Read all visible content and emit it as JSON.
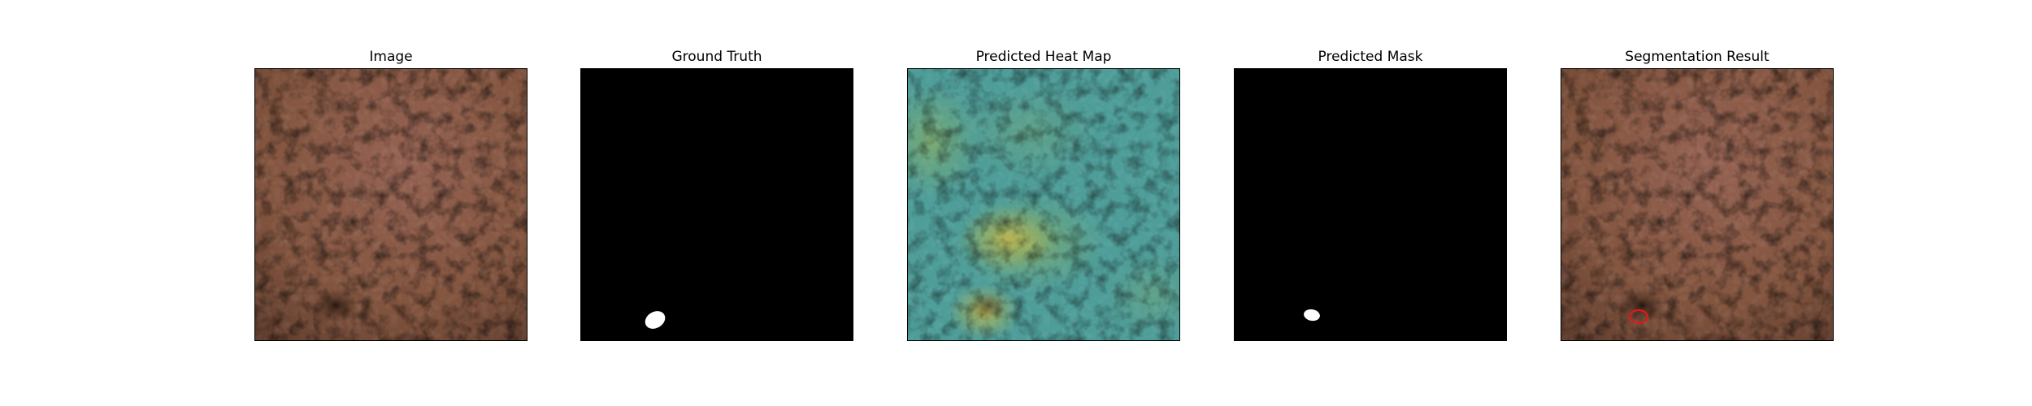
{
  "figure": {
    "panels": [
      {
        "id": "image",
        "title": "Image"
      },
      {
        "id": "ground_truth",
        "title": "Ground Truth"
      },
      {
        "id": "heat_map",
        "title": "Predicted Heat Map"
      },
      {
        "id": "pred_mask",
        "title": "Predicted Mask"
      },
      {
        "id": "segmentation",
        "title": "Segmentation Result"
      }
    ]
  },
  "colors": {
    "leather": "#8a5a47",
    "mask_background": "#000000",
    "mask_foreground": "#ffffff",
    "heat_base": "#4f9e9a",
    "heat_hot": "#b5b046",
    "contour": "#e01818"
  }
}
